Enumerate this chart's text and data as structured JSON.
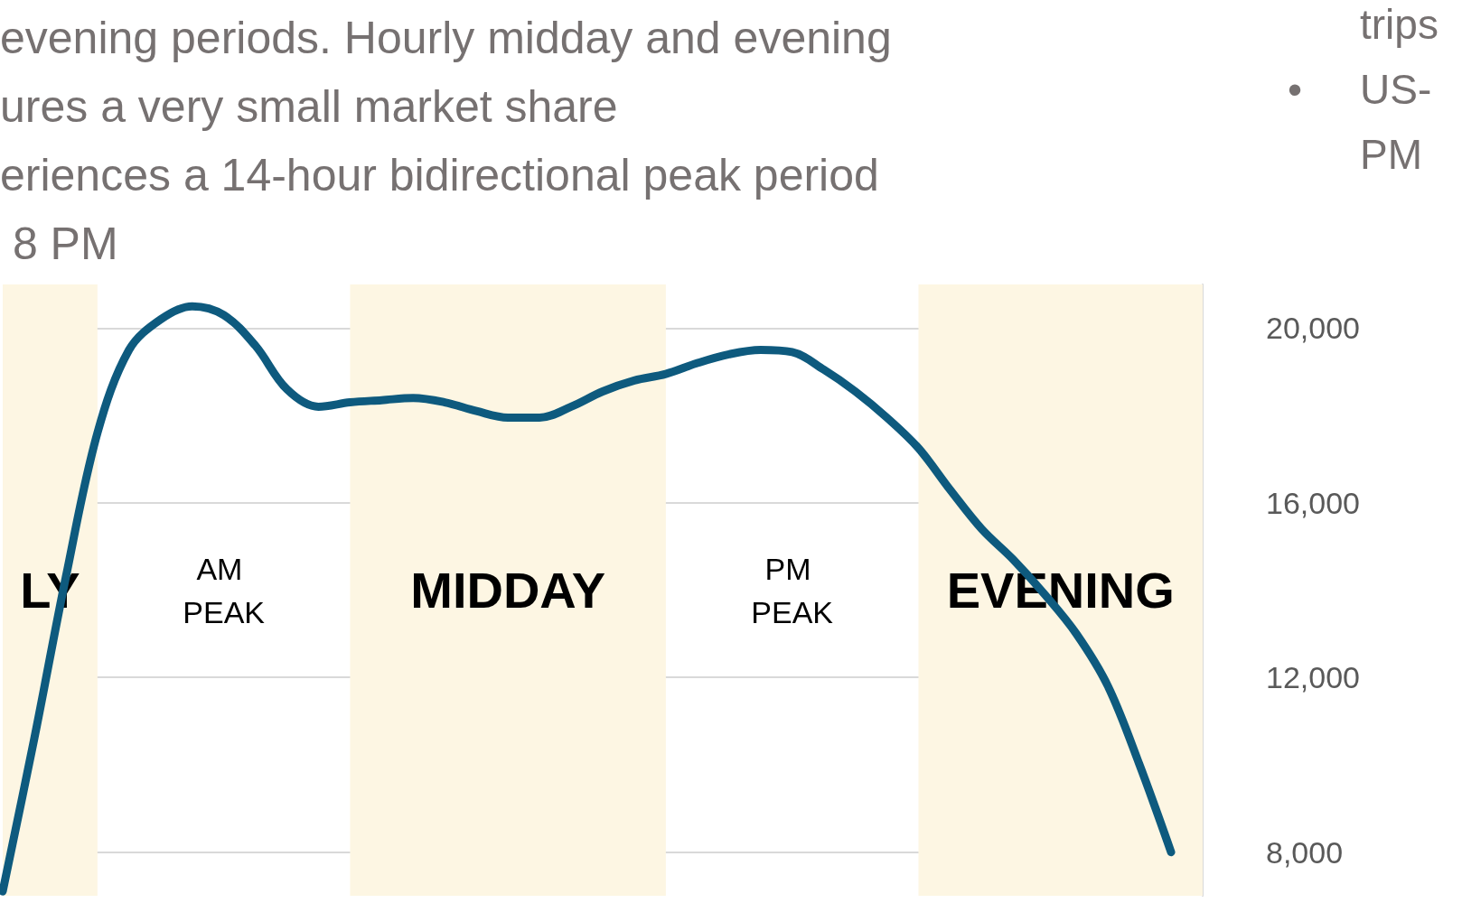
{
  "chart_data": {
    "type": "line",
    "subtitle": "evening periods. Hourly midday and evening\nures a very small market share\neriences a 14-hour bidirectional peak period\n 8 PM",
    "annotations": [
      "trips",
      "•",
      "US-",
      "PM",
      "LY",
      "AM PEAK",
      "MIDDAY",
      "PM PEAK",
      "EVENING"
    ],
    "categories": [
      null,
      null,
      null,
      null,
      null,
      null,
      null,
      null,
      null,
      null,
      null,
      null,
      null,
      null,
      null,
      null,
      null,
      null,
      null,
      null,
      null,
      null,
      null,
      null,
      null,
      null,
      null,
      null,
      null,
      null,
      null,
      null,
      null,
      null,
      null,
      null,
      null,
      null,
      null
    ],
    "series": [
      {
        "color": "#0e5a7e",
        "values": [
          7100,
          10600,
          14300,
          17600,
          19500,
          20200,
          20500,
          20300,
          19600,
          18600,
          18200,
          18300,
          18350,
          18400,
          18300,
          18100,
          17950,
          17950,
          18200,
          18550,
          18800,
          18950,
          19200,
          19400,
          19500,
          19450,
          19050,
          18550,
          17950,
          17250,
          16300,
          15400,
          14700,
          13900,
          13000,
          11800,
          10000,
          8000,
          null
        ]
      }
    ],
    "ylim": [
      7000,
      21000
    ],
    "yticks": [
      {
        "value": 8000,
        "label": "8,000"
      },
      {
        "value": 12000,
        "label": "12,000"
      },
      {
        "value": 16000,
        "label": "16,000"
      },
      {
        "value": 20000,
        "label": "20,000"
      }
    ],
    "grid": "y",
    "line_style": "solid"
  }
}
